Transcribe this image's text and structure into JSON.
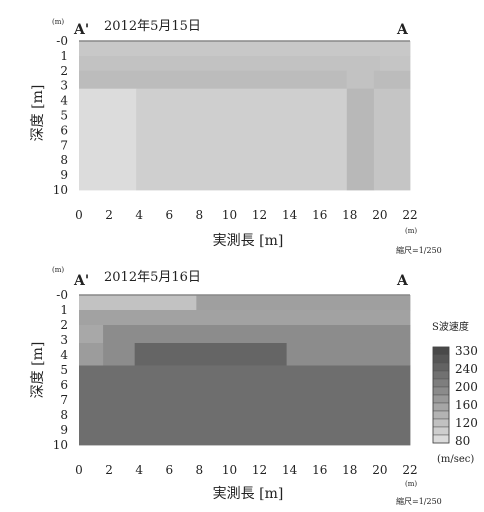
{
  "chart_data": [
    {
      "type": "heatmap",
      "date": "2012年5月15日",
      "left_label": "A'",
      "right_label": "A",
      "xlabel": "実測長 [m]",
      "ylabel": "深度 [m]",
      "x_ticks": [
        "0",
        "2",
        "4",
        "6",
        "8",
        "10",
        "12",
        "14",
        "16",
        "18",
        "20",
        "22"
      ],
      "y_ticks": [
        "-0",
        "1",
        "2",
        "3",
        "4",
        "5",
        "6",
        "7",
        "8",
        "9",
        "10"
      ],
      "xlim": [
        0,
        22
      ],
      "ylim": [
        0,
        10
      ],
      "unit_mark": "(m)",
      "scale": "縮尺=1/250",
      "cells": [
        {
          "x0": 0,
          "x1": 22,
          "y0": 0,
          "y1": 1,
          "v": 120
        },
        {
          "x0": 0,
          "x1": 20,
          "y0": 1,
          "y1": 2,
          "v": 130
        },
        {
          "x0": 20,
          "x1": 22,
          "y0": 1,
          "y1": 2,
          "v": 125
        },
        {
          "x0": 0,
          "x1": 17.8,
          "y0": 2,
          "y1": 3.2,
          "v": 140
        },
        {
          "x0": 17.8,
          "x1": 19.6,
          "y0": 2,
          "y1": 3.2,
          "v": 130
        },
        {
          "x0": 19.6,
          "x1": 22,
          "y0": 2,
          "y1": 3.2,
          "v": 140
        },
        {
          "x0": 0,
          "x1": 3.8,
          "y0": 3.2,
          "y1": 10,
          "v": 90
        },
        {
          "x0": 3.8,
          "x1": 17.8,
          "y0": 3.2,
          "y1": 10,
          "v": 110
        },
        {
          "x0": 17.8,
          "x1": 19.6,
          "y0": 3.2,
          "y1": 10,
          "v": 145
        },
        {
          "x0": 19.6,
          "x1": 22,
          "y0": 3.2,
          "y1": 10,
          "v": 125
        }
      ]
    },
    {
      "type": "heatmap",
      "date": "2012年5月16日",
      "left_label": "A'",
      "right_label": "A",
      "xlabel": "実測長 [m]",
      "ylabel": "深度 [m]",
      "x_ticks": [
        "0",
        "2",
        "4",
        "6",
        "8",
        "10",
        "12",
        "14",
        "16",
        "18",
        "20",
        "22"
      ],
      "y_ticks": [
        "-0",
        "1",
        "2",
        "3",
        "4",
        "5",
        "6",
        "7",
        "8",
        "9",
        "10"
      ],
      "xlim": [
        0,
        22
      ],
      "ylim": [
        0,
        10
      ],
      "unit_mark": "(m)",
      "scale": "縮尺=1/250",
      "cells": [
        {
          "x0": 0,
          "x1": 7.8,
          "y0": 0,
          "y1": 1,
          "v": 130
        },
        {
          "x0": 7.8,
          "x1": 22,
          "y0": 0,
          "y1": 1,
          "v": 185
        },
        {
          "x0": 0,
          "x1": 22,
          "y0": 1,
          "y1": 2,
          "v": 180
        },
        {
          "x0": 0,
          "x1": 1.6,
          "y0": 2,
          "y1": 3.2,
          "v": 170
        },
        {
          "x0": 1.6,
          "x1": 22,
          "y0": 2,
          "y1": 3.2,
          "v": 215
        },
        {
          "x0": 0,
          "x1": 1.6,
          "y0": 3.2,
          "y1": 4.7,
          "v": 190
        },
        {
          "x0": 1.6,
          "x1": 3.7,
          "y0": 3.2,
          "y1": 4.7,
          "v": 215
        },
        {
          "x0": 3.7,
          "x1": 13.8,
          "y0": 3.2,
          "y1": 4.7,
          "v": 275
        },
        {
          "x0": 13.8,
          "x1": 22,
          "y0": 3.2,
          "y1": 4.7,
          "v": 215
        },
        {
          "x0": 0,
          "x1": 22,
          "y0": 4.7,
          "y1": 10,
          "v": 262
        }
      ]
    }
  ],
  "legend": {
    "title": "S波速度",
    "labels": [
      "330",
      "240",
      "200",
      "160",
      "120",
      "80"
    ],
    "unit": "(m/sec)",
    "range": [
      80,
      330
    ]
  }
}
